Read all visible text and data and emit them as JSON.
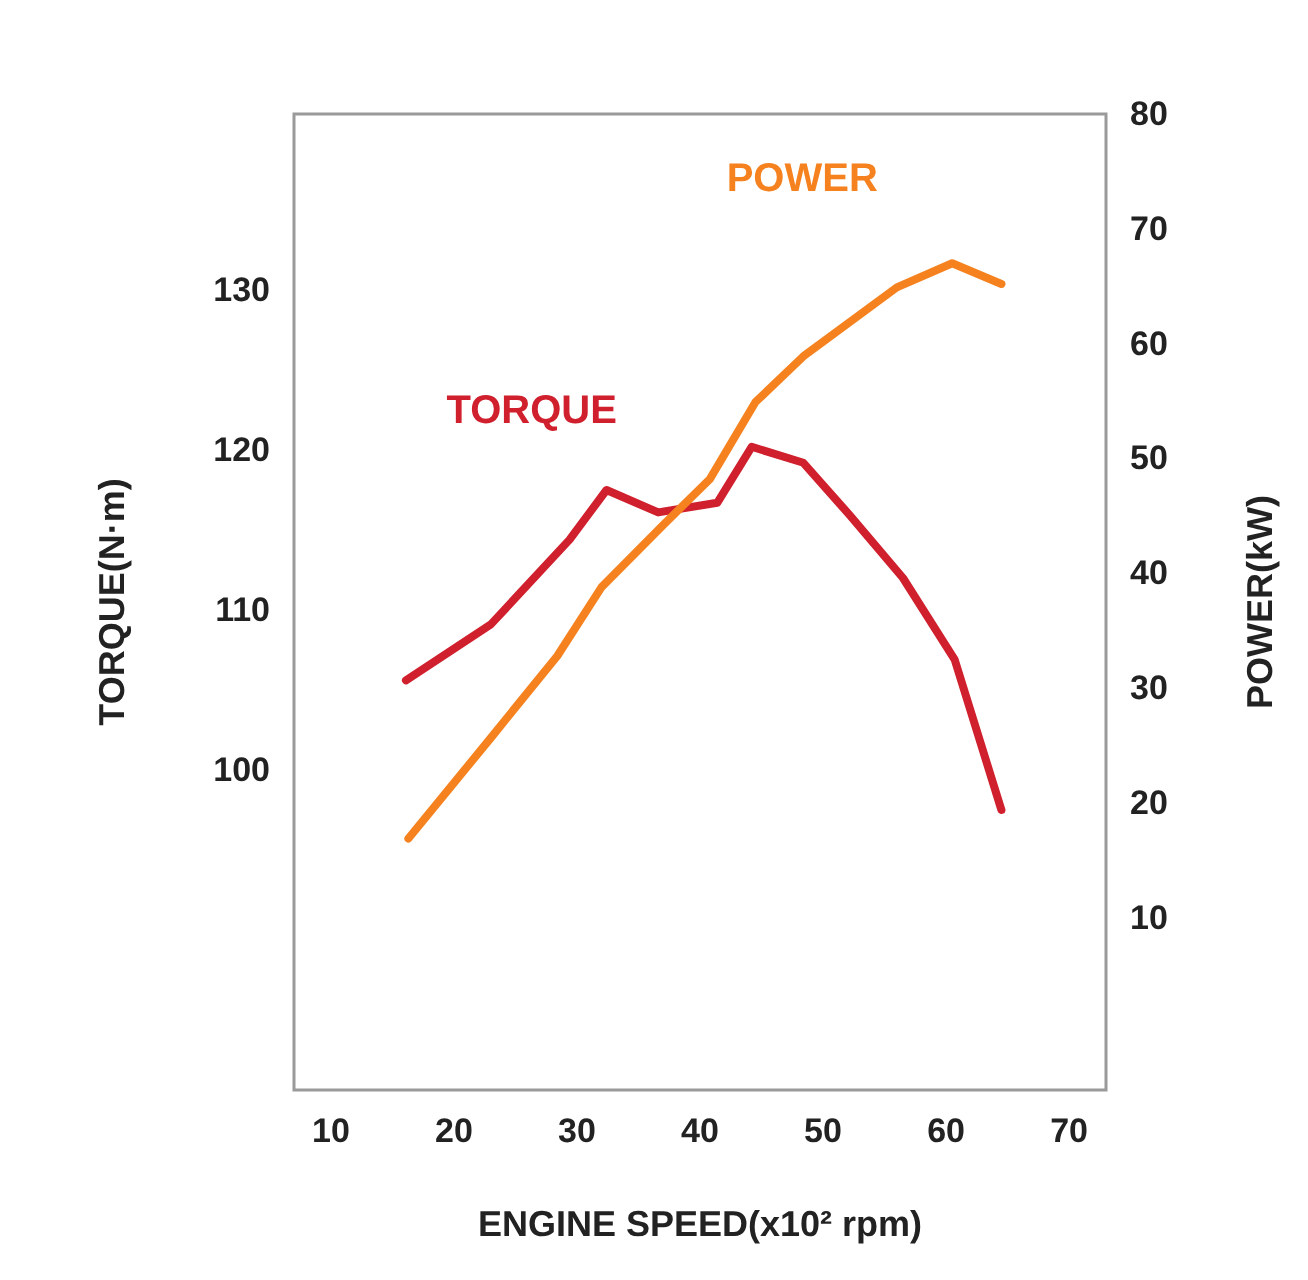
{
  "chart_data": {
    "type": "line",
    "xlabel": "ENGINE SPEED(x10² rpm)",
    "ylabel": "TORQUE(N·m)",
    "y2label": "POWER(kW)",
    "xlim": [
      7,
      73
    ],
    "xticks": [
      10,
      20,
      30,
      40,
      50,
      60,
      70
    ],
    "ylim": [
      80,
      141
    ],
    "yticks": [
      100,
      110,
      120,
      130
    ],
    "y2lim": [
      -5,
      80
    ],
    "y2ticks": [
      10,
      20,
      30,
      40,
      50,
      60,
      70,
      80
    ],
    "grid": false,
    "legend": false,
    "marker": "none",
    "line_style": "solid",
    "series": [
      {
        "name": "TORQUE",
        "color": "#d0202e",
        "x": [
          16.1,
          23,
          29.4,
          32.4,
          36.6,
          41.4,
          44.2,
          48.4,
          52.2,
          56.5,
          60.7,
          64.5
        ],
        "values": [
          105.6,
          109.1,
          114.4,
          117.5,
          116.1,
          116.7,
          120.2,
          119.2,
          115.9,
          112,
          106.9,
          97.5
        ]
      },
      {
        "name": "POWER",
        "color": "#f5821f",
        "axis": "y2",
        "x": [
          16.3,
          23.1,
          28.4,
          32,
          37,
          40.8,
          44.5,
          48.4,
          56,
          60.5,
          64.5
        ],
        "values": [
          16.9,
          25.8,
          32.8,
          38.8,
          44.2,
          48.2,
          54.9,
          58.9,
          64.9,
          67,
          65.2
        ]
      }
    ]
  }
}
